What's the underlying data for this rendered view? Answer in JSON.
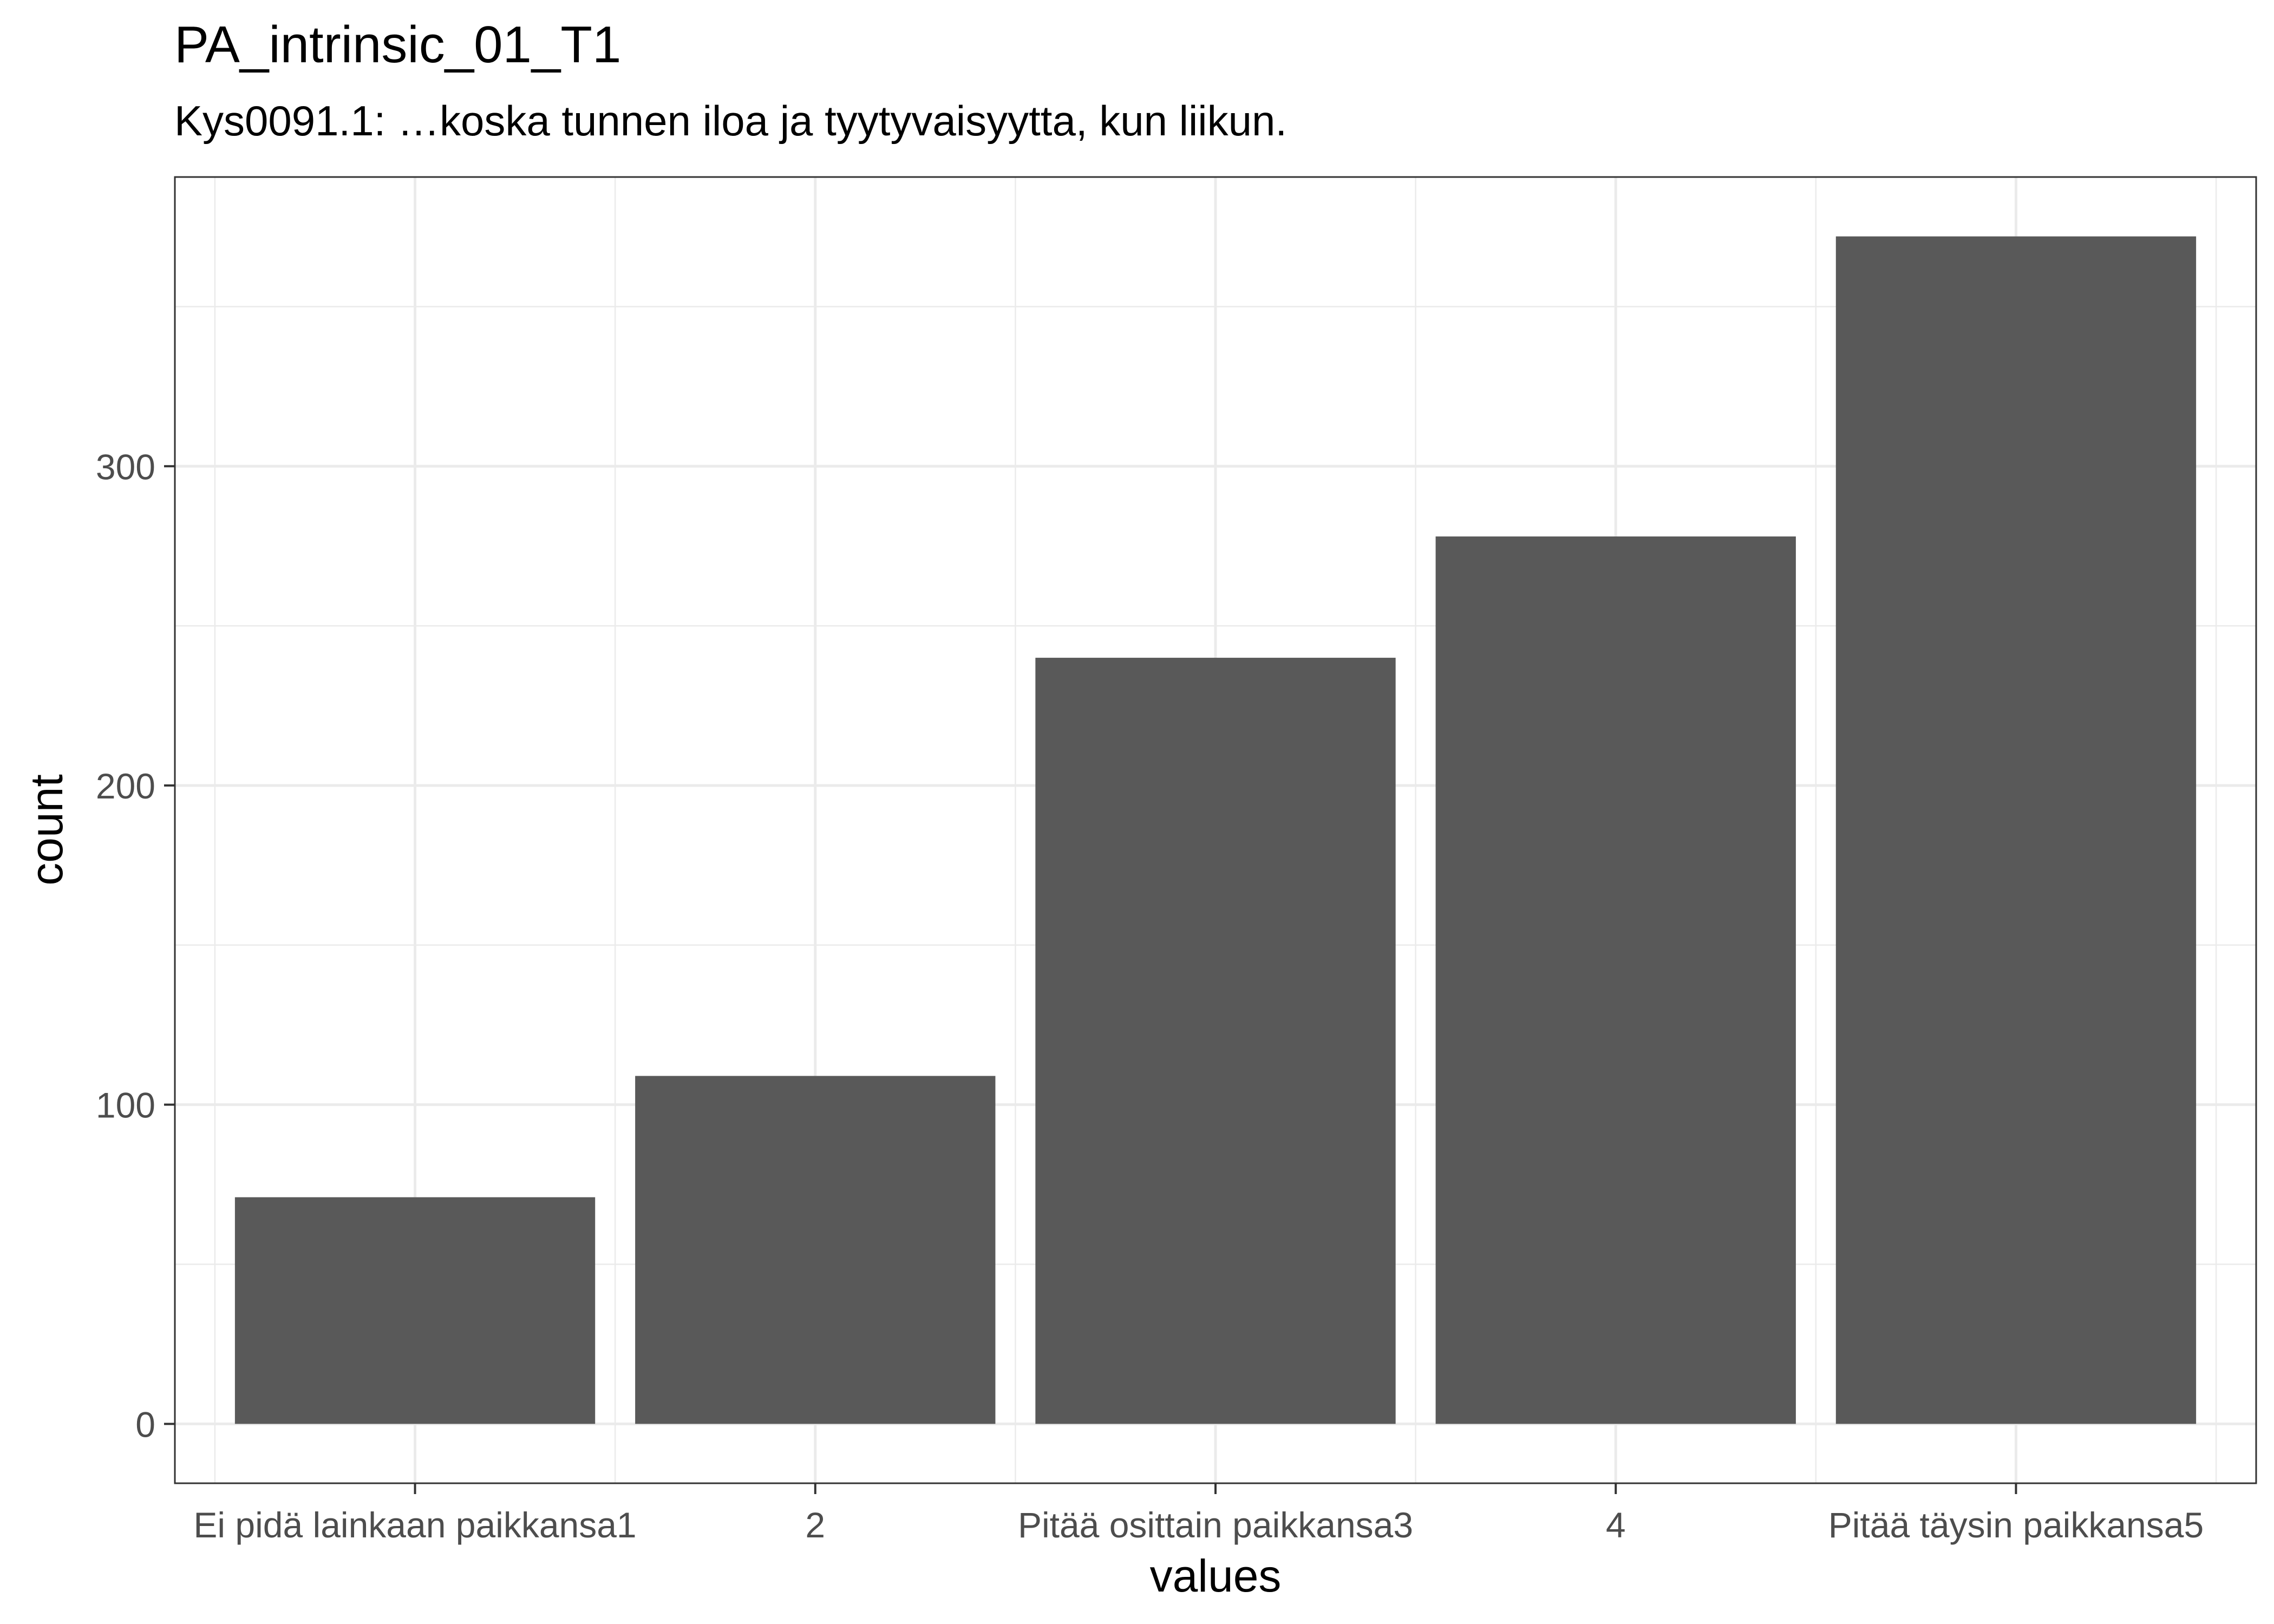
{
  "chart_data": {
    "type": "bar",
    "title": "PA_intrinsic_01_T1",
    "subtitle": "Kys0091.1: …koska tunnen iloa ja tyytyvaisyytta, kun liikun.",
    "xlabel": "values",
    "ylabel": "count",
    "categories": [
      "Ei pidä lainkaan paikkansa1",
      "2",
      "Pitää osittain paikkansa3",
      "4",
      "Pitää täysin paikkansa5"
    ],
    "values": [
      71,
      109,
      240,
      278,
      372
    ],
    "yticks": [
      0,
      100,
      200,
      300
    ],
    "ylim": [
      -18.6,
      390.6
    ],
    "grid": true,
    "bar_color": "#595959",
    "grid_color": "#ebebeb",
    "panel_border_color": "#333333"
  }
}
